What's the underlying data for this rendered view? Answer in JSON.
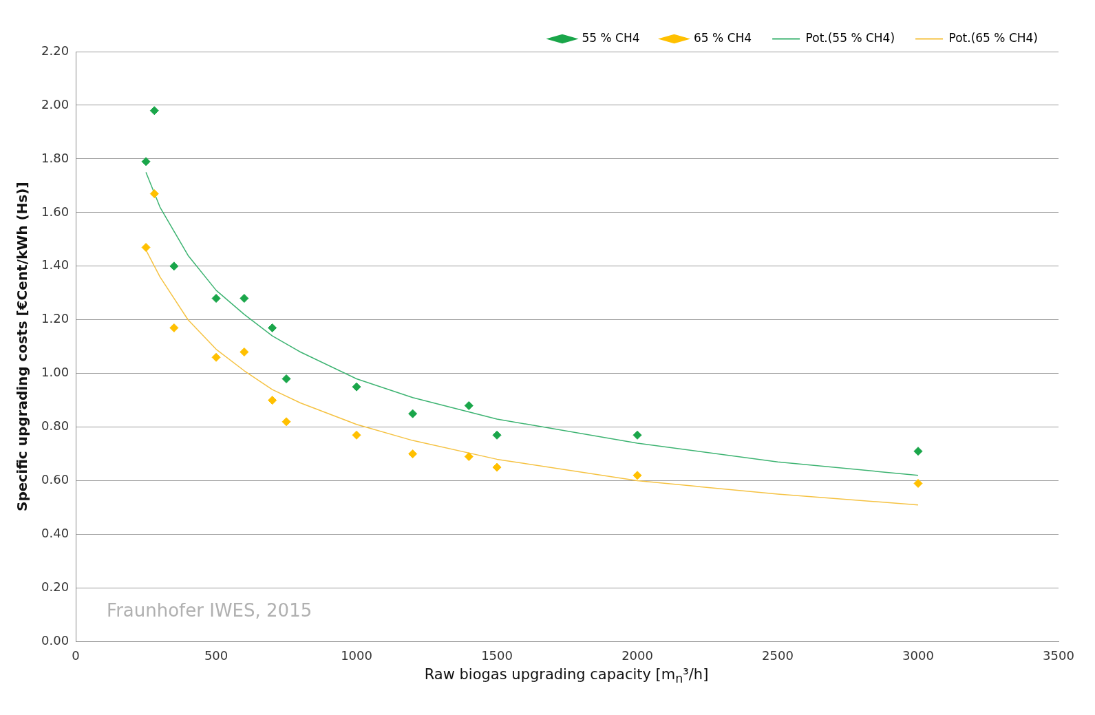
{
  "chart_data": {
    "type": "scatter",
    "xlabel": "Raw  biogas upgrading capacity [m$_{n}$³/h]",
    "ylabel": "Specific upgrading costs [€Cent/kWh (Hs)]",
    "xlim": [
      0,
      3500
    ],
    "xticks": [
      0,
      500,
      1000,
      1500,
      2000,
      2500,
      3000,
      3500
    ],
    "ylim": [
      0,
      2.2
    ],
    "yticks": [
      {
        "value": 0,
        "label": "0.00"
      },
      {
        "value": 0.2,
        "label": "0.20"
      },
      {
        "value": 0.4,
        "label": "0.40"
      },
      {
        "value": 0.6,
        "label": "0.60"
      },
      {
        "value": 0.8,
        "label": "0.80"
      },
      {
        "value": 1,
        "label": "1.00"
      },
      {
        "value": 1.2,
        "label": "1.20"
      },
      {
        "value": 1.4,
        "label": "1.40"
      },
      {
        "value": 1.6,
        "label": "1.60"
      },
      {
        "value": 1.8,
        "label": "1.80"
      },
      {
        "value": 2,
        "label": "2.00"
      },
      {
        "value": 2.2,
        "label": "2.20"
      }
    ],
    "grid": "y",
    "legend": "top right",
    "marker": "diamond",
    "annotations": [
      "Fraunhofer IWES, 2015"
    ],
    "series": [
      {
        "name": "55 % CH4",
        "color": "#1aa64a",
        "x": [
          250,
          280,
          350,
          500,
          600,
          700,
          750,
          1000,
          1200,
          1400,
          1500,
          2000,
          3000
        ],
        "values": [
          1.79,
          1.98,
          1.4,
          1.28,
          1.28,
          1.17,
          0.98,
          0.95,
          0.85,
          0.88,
          0.77,
          0.77,
          0.71
        ]
      },
      {
        "name": "65 % CH4",
        "color": "#ffc000",
        "x": [
          250,
          280,
          350,
          500,
          600,
          700,
          750,
          1000,
          1200,
          1400,
          1500,
          2000,
          3000
        ],
        "values": [
          1.47,
          1.67,
          1.17,
          1.06,
          1.08,
          0.9,
          0.82,
          0.77,
          0.7,
          0.69,
          0.65,
          0.62,
          0.59
        ]
      },
      {
        "name": "Pot.(55 % CH4)",
        "type": "line",
        "marker": "none",
        "color": "#3cb371",
        "x": [
          250,
          300,
          400,
          500,
          600,
          700,
          800,
          1000,
          1200,
          1500,
          2000,
          2500,
          3000
        ],
        "values": [
          1.75,
          1.62,
          1.44,
          1.31,
          1.22,
          1.14,
          1.08,
          0.98,
          0.91,
          0.83,
          0.74,
          0.67,
          0.62
        ]
      },
      {
        "name": "Pot.(65 % CH4)",
        "type": "line",
        "marker": "none",
        "color": "#f5c242",
        "x": [
          250,
          300,
          400,
          500,
          600,
          700,
          800,
          1000,
          1200,
          1500,
          2000,
          2500,
          3000
        ],
        "values": [
          1.46,
          1.36,
          1.2,
          1.09,
          1.01,
          0.94,
          0.89,
          0.81,
          0.75,
          0.68,
          0.6,
          0.55,
          0.51
        ]
      }
    ]
  }
}
